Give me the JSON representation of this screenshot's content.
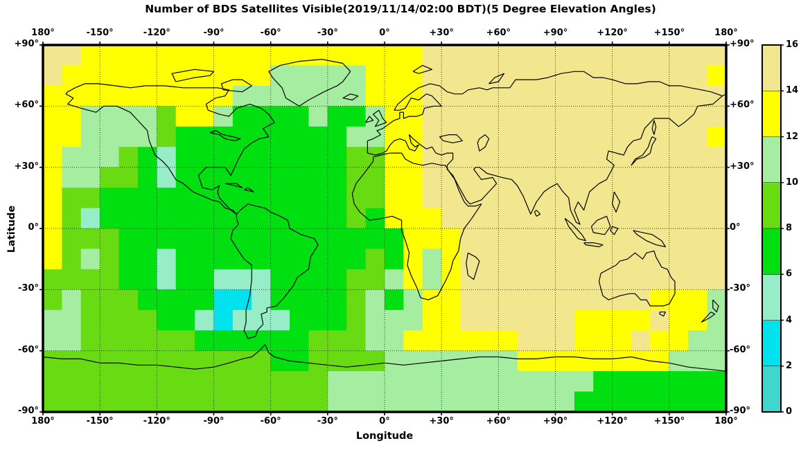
{
  "title": "Number of BDS Satellites Visible(2019/11/14/02:00 BDT)(5 Degree Elevation Angles)",
  "axes": {
    "x_title": "Longitude",
    "y_title": "Latitude",
    "x_tick_labels": [
      "180°",
      "-150°",
      "-120°",
      "-90°",
      "-60°",
      "-30°",
      "0°",
      "+30°",
      "+60°",
      "+90°",
      "+120°",
      "+150°",
      "180°"
    ],
    "y_tick_labels": [
      "+90°",
      "+60°",
      "+30°",
      "0°",
      "-30°",
      "-60°",
      "-90°"
    ],
    "x_tick_lons": [
      -180,
      -150,
      -120,
      -90,
      -60,
      -30,
      0,
      30,
      60,
      90,
      120,
      150,
      180
    ],
    "y_tick_lats": [
      90,
      60,
      30,
      0,
      -30,
      -60,
      -90
    ],
    "graticule_step_degrees": 30,
    "graticule_style": "dotted"
  },
  "colorbar": {
    "position": "right",
    "min": 0,
    "max": 16,
    "step": 2,
    "labels_top_to_bottom": [
      "16",
      "14",
      "12",
      "10",
      "8",
      "6",
      "4",
      "2",
      "0"
    ],
    "bin_colors_low_to_high": [
      "#3FD6CE",
      "#00E2EE",
      "#97EDC8",
      "#00DF10",
      "#69DB13",
      "#A5EDA0",
      "#FFFF00",
      "#F2E68F"
    ],
    "bins": [
      [
        0,
        2
      ],
      [
        2,
        4
      ],
      [
        4,
        6
      ],
      [
        6,
        8
      ],
      [
        8,
        10
      ],
      [
        10,
        12
      ],
      [
        12,
        14
      ],
      [
        14,
        16
      ]
    ]
  },
  "chart_data": {
    "type": "heatmap",
    "title": "Number of BDS Satellites Visible(2019/11/14/02:00 BDT)(5 Degree Elevation Angles)",
    "xlabel": "Longitude",
    "ylabel": "Latitude",
    "x_range": [
      -180,
      180
    ],
    "y_range": [
      -90,
      90
    ],
    "units": "number of BDS satellites visible (filled contours, 2-satellite bins)",
    "cell_size_degrees": 10,
    "lat_centers_north_to_south": [
      85,
      75,
      65,
      55,
      45,
      35,
      25,
      15,
      5,
      -5,
      -15,
      -25,
      -35,
      -45,
      -55,
      -65,
      -75,
      -85
    ],
    "lon_centers_west_to_east": [
      -175,
      -165,
      -155,
      -145,
      -135,
      -125,
      -115,
      -105,
      -95,
      -85,
      -75,
      -65,
      -55,
      -45,
      -35,
      -25,
      -15,
      -5,
      5,
      15,
      25,
      35,
      45,
      55,
      65,
      75,
      85,
      95,
      105,
      115,
      125,
      135,
      145,
      155,
      165,
      175
    ],
    "values_visible_satellites": [
      [
        15,
        15,
        13,
        13,
        13,
        13,
        13,
        13,
        13,
        13,
        13,
        13,
        13,
        13,
        13,
        13,
        13,
        13,
        13,
        13,
        15,
        15,
        15,
        15,
        15,
        15,
        15,
        15,
        15,
        15,
        15,
        15,
        15,
        15,
        15,
        15
      ],
      [
        15,
        13,
        13,
        13,
        13,
        13,
        13,
        13,
        13,
        13,
        13,
        13,
        11,
        11,
        11,
        11,
        11,
        13,
        13,
        13,
        15,
        15,
        15,
        15,
        15,
        15,
        15,
        15,
        15,
        15,
        15,
        15,
        15,
        15,
        15,
        13
      ],
      [
        13,
        13,
        13,
        13,
        13,
        13,
        13,
        13,
        13,
        13,
        11,
        11,
        11,
        11,
        11,
        11,
        11,
        13,
        13,
        13,
        15,
        15,
        15,
        15,
        15,
        15,
        15,
        15,
        15,
        15,
        15,
        15,
        15,
        15,
        15,
        15
      ],
      [
        13,
        13,
        11,
        11,
        11,
        11,
        9,
        13,
        13,
        11,
        7,
        7,
        7,
        7,
        11,
        7,
        7,
        11,
        13,
        13,
        15,
        15,
        15,
        15,
        15,
        15,
        15,
        15,
        15,
        15,
        15,
        15,
        15,
        15,
        15,
        15
      ],
      [
        13,
        13,
        11,
        11,
        11,
        11,
        9,
        7,
        7,
        7,
        7,
        7,
        7,
        7,
        7,
        7,
        11,
        11,
        13,
        13,
        15,
        15,
        15,
        15,
        15,
        15,
        15,
        15,
        15,
        15,
        15,
        15,
        15,
        15,
        15,
        13
      ],
      [
        13,
        11,
        11,
        11,
        9,
        7,
        5,
        7,
        7,
        7,
        7,
        7,
        7,
        7,
        7,
        7,
        9,
        9,
        13,
        13,
        15,
        15,
        15,
        15,
        15,
        15,
        15,
        15,
        15,
        15,
        15,
        15,
        15,
        15,
        15,
        15
      ],
      [
        13,
        11,
        11,
        9,
        9,
        7,
        5,
        7,
        7,
        7,
        7,
        7,
        7,
        7,
        7,
        7,
        9,
        9,
        13,
        13,
        15,
        15,
        15,
        15,
        15,
        15,
        15,
        15,
        15,
        15,
        15,
        15,
        15,
        15,
        15,
        15
      ],
      [
        13,
        9,
        9,
        7,
        7,
        7,
        7,
        7,
        7,
        7,
        7,
        7,
        7,
        7,
        7,
        7,
        9,
        9,
        13,
        13,
        15,
        15,
        15,
        15,
        15,
        15,
        15,
        15,
        15,
        15,
        15,
        15,
        15,
        15,
        15,
        15
      ],
      [
        13,
        9,
        5,
        7,
        7,
        7,
        7,
        7,
        7,
        7,
        7,
        7,
        7,
        7,
        7,
        7,
        9,
        7,
        13,
        13,
        13,
        15,
        15,
        15,
        15,
        15,
        15,
        15,
        15,
        15,
        15,
        15,
        15,
        15,
        15,
        15
      ],
      [
        13,
        9,
        9,
        9,
        7,
        7,
        7,
        7,
        7,
        7,
        7,
        7,
        7,
        7,
        7,
        7,
        7,
        7,
        7,
        13,
        13,
        13,
        15,
        15,
        15,
        15,
        15,
        15,
        15,
        15,
        15,
        15,
        15,
        15,
        15,
        15
      ],
      [
        13,
        9,
        11,
        9,
        7,
        7,
        5,
        7,
        7,
        7,
        7,
        7,
        7,
        7,
        7,
        7,
        7,
        9,
        7,
        13,
        11,
        13,
        15,
        15,
        15,
        15,
        15,
        15,
        15,
        15,
        15,
        15,
        15,
        15,
        15,
        15
      ],
      [
        9,
        9,
        9,
        9,
        7,
        7,
        5,
        7,
        7,
        5,
        5,
        5,
        7,
        7,
        7,
        7,
        9,
        9,
        11,
        13,
        11,
        13,
        15,
        15,
        15,
        15,
        15,
        15,
        15,
        15,
        15,
        15,
        15,
        15,
        15,
        15
      ],
      [
        9,
        11,
        9,
        9,
        9,
        7,
        7,
        7,
        7,
        3,
        3,
        5,
        7,
        7,
        7,
        7,
        9,
        11,
        7,
        11,
        13,
        13,
        15,
        15,
        15,
        15,
        15,
        15,
        15,
        15,
        15,
        15,
        13,
        13,
        13,
        11
      ],
      [
        11,
        11,
        9,
        9,
        9,
        9,
        7,
        7,
        5,
        3,
        5,
        5,
        5,
        7,
        7,
        7,
        9,
        11,
        11,
        11,
        13,
        13,
        15,
        15,
        15,
        15,
        15,
        15,
        13,
        13,
        13,
        13,
        15,
        13,
        13,
        11
      ],
      [
        11,
        11,
        9,
        9,
        9,
        9,
        9,
        9,
        7,
        7,
        7,
        7,
        7,
        7,
        9,
        9,
        9,
        11,
        11,
        13,
        13,
        13,
        13,
        13,
        13,
        15,
        15,
        15,
        13,
        13,
        13,
        15,
        13,
        13,
        11,
        11
      ],
      [
        9,
        9,
        9,
        9,
        9,
        9,
        9,
        9,
        9,
        9,
        9,
        9,
        7,
        7,
        9,
        9,
        9,
        9,
        11,
        11,
        11,
        11,
        11,
        11,
        11,
        13,
        13,
        13,
        13,
        13,
        13,
        13,
        13,
        11,
        11,
        11
      ],
      [
        9,
        9,
        9,
        9,
        9,
        9,
        9,
        9,
        9,
        9,
        9,
        9,
        9,
        9,
        9,
        11,
        11,
        11,
        11,
        11,
        11,
        11,
        11,
        11,
        11,
        11,
        11,
        11,
        11,
        7,
        7,
        7,
        7,
        7,
        7,
        7
      ],
      [
        9,
        9,
        9,
        9,
        9,
        9,
        9,
        9,
        9,
        9,
        9,
        9,
        9,
        9,
        9,
        11,
        11,
        11,
        11,
        11,
        11,
        11,
        11,
        11,
        11,
        11,
        11,
        11,
        7,
        7,
        7,
        7,
        7,
        7,
        7,
        7
      ]
    ],
    "legend_position": "right",
    "grid": "30-degree dotted graticule with world coastlines overlaid"
  }
}
